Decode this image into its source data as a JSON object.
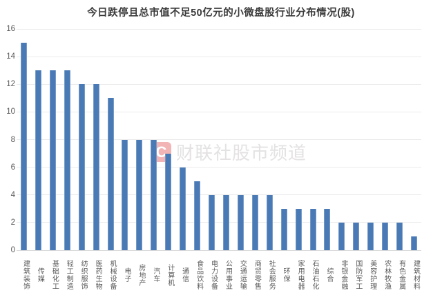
{
  "chart_data": {
    "type": "bar",
    "title": "今日跌停且总市值不足50亿元的小微盘股行业分布情况(股)",
    "categories": [
      "建筑装饰",
      "传媒",
      "基础化工",
      "轻工制造",
      "纺织服饰",
      "医药生物",
      "机械设备",
      "电子",
      "房地产",
      "汽车",
      "计算机",
      "通信",
      "食品饮料",
      "电力设备",
      "公用事业",
      "交通运输",
      "商贸零售",
      "社会服务",
      "环保",
      "家用电器",
      "石油石化",
      "综合",
      "非银金融",
      "国防军工",
      "美容护理",
      "农林牧渔",
      "有色金属",
      "建筑材料"
    ],
    "values": [
      15,
      13,
      13,
      13,
      12,
      12,
      11,
      8,
      8,
      8,
      7,
      6,
      5,
      4,
      4,
      4,
      4,
      4,
      3,
      3,
      3,
      3,
      2,
      2,
      2,
      2,
      2,
      1
    ],
    "xlabel": "",
    "ylabel": "",
    "ylim": [
      0,
      16
    ],
    "yticks": [
      0,
      2,
      4,
      6,
      8,
      10,
      12,
      14,
      16
    ],
    "grid": "horizontal",
    "legend": "none"
  },
  "watermark": {
    "logo_glyph": "C",
    "text": "财联社股市频道"
  },
  "colors": {
    "bar": "#4a7ab5",
    "gridline": "#ebebeb",
    "baseline": "#d9d9d9",
    "axis_text": "#595959",
    "title_text": "#3a3a3a",
    "watermark_text": "#e4e2e2",
    "watermark_logo": "#f2b4b4",
    "background": "#ffffff"
  }
}
